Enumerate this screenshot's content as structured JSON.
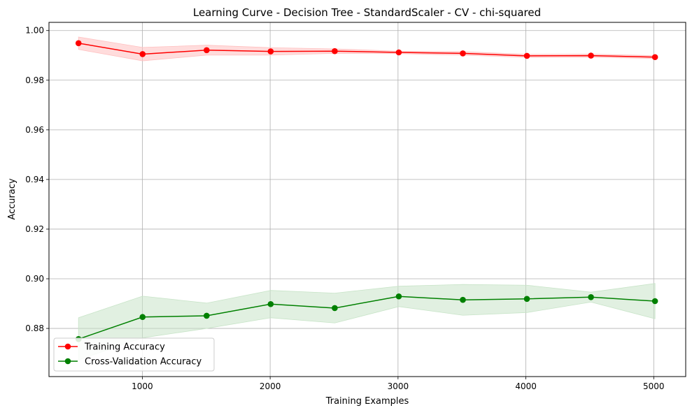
{
  "chart_data": {
    "type": "line",
    "title": "Learning Curve - Decision Tree - StandardScaler - CV - chi-squared",
    "xlabel": "Training Examples",
    "ylabel": "Accuracy",
    "xlim": [
      270,
      5250
    ],
    "ylim": [
      0.8606,
      1.0033
    ],
    "xticks": [
      1000,
      2000,
      3000,
      4000,
      5000
    ],
    "xtick_labels": [
      "1000",
      "2000",
      "3000",
      "4000",
      "5000"
    ],
    "yticks": [
      0.88,
      0.9,
      0.92,
      0.94,
      0.96,
      0.98,
      1.0
    ],
    "ytick_labels": [
      "0.88",
      "0.90",
      "0.92",
      "0.94",
      "0.96",
      "0.98",
      "1.00"
    ],
    "grid": true,
    "legend_position": "lower-left",
    "x": [
      501,
      1002,
      1503,
      2004,
      2505,
      3006,
      3507,
      4008,
      4509,
      5010
    ],
    "series": [
      {
        "name": "Training Accuracy",
        "color": "#ff0000",
        "fill_color": "#ffc0c0",
        "values": [
          0.9949,
          0.9905,
          0.9921,
          0.9916,
          0.9917,
          0.9912,
          0.9908,
          0.9898,
          0.9899,
          0.9893
        ],
        "lower": [
          0.9924,
          0.9878,
          0.9901,
          0.9901,
          0.9908,
          0.9907,
          0.9901,
          0.9892,
          0.9893,
          0.9887
        ],
        "upper": [
          0.9974,
          0.9932,
          0.9941,
          0.9931,
          0.9926,
          0.9917,
          0.9915,
          0.9904,
          0.9905,
          0.9899
        ]
      },
      {
        "name": "Cross-Validation Accuracy",
        "color": "#008000",
        "fill_color": "#c8e4c8",
        "values": [
          0.8757,
          0.8846,
          0.8851,
          0.8898,
          0.8882,
          0.8929,
          0.8915,
          0.8919,
          0.8926,
          0.891
        ],
        "lower": [
          0.8673,
          0.8762,
          0.88,
          0.8843,
          0.8822,
          0.8888,
          0.8853,
          0.8864,
          0.8906,
          0.8839
        ],
        "upper": [
          0.8843,
          0.893,
          0.8902,
          0.8953,
          0.8942,
          0.897,
          0.8977,
          0.8974,
          0.8946,
          0.8981
        ]
      }
    ]
  }
}
